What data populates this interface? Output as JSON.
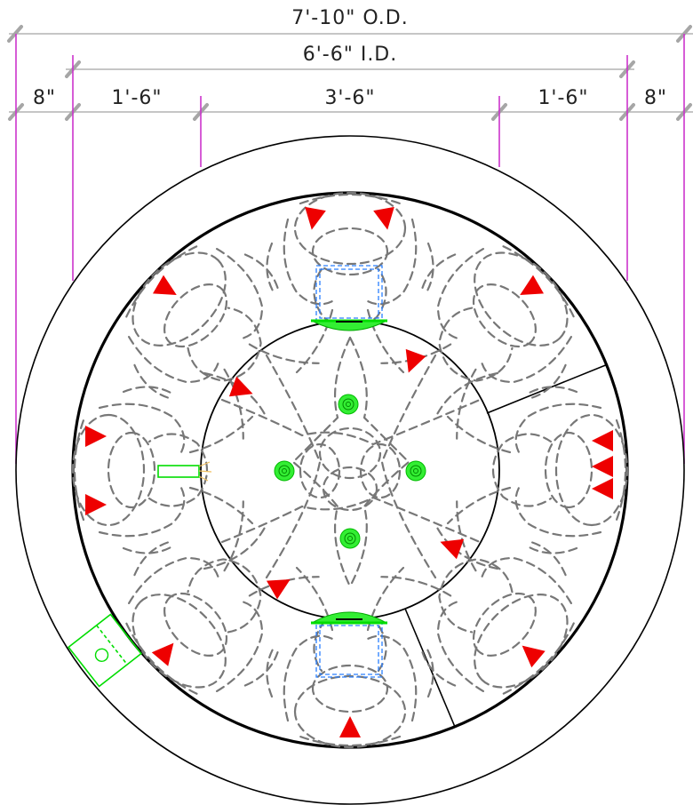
{
  "dimensions": {
    "overall_od": "7'-10\" O.D.",
    "inner_id": "6'-6\" I.D.",
    "wall_left": "8\"",
    "ring_left": "1'-6\"",
    "center": "3'-6\"",
    "ring_right": "1'-6\"",
    "wall_right": "8\""
  },
  "colors": {
    "dimension_line": "#b4b4b4",
    "extension_line": "#cc33cc",
    "marker": "#ee0000",
    "fixture": "#00dd00",
    "frame": "#2a7fff",
    "outline": "#000000",
    "hidden_line": "#777777"
  }
}
